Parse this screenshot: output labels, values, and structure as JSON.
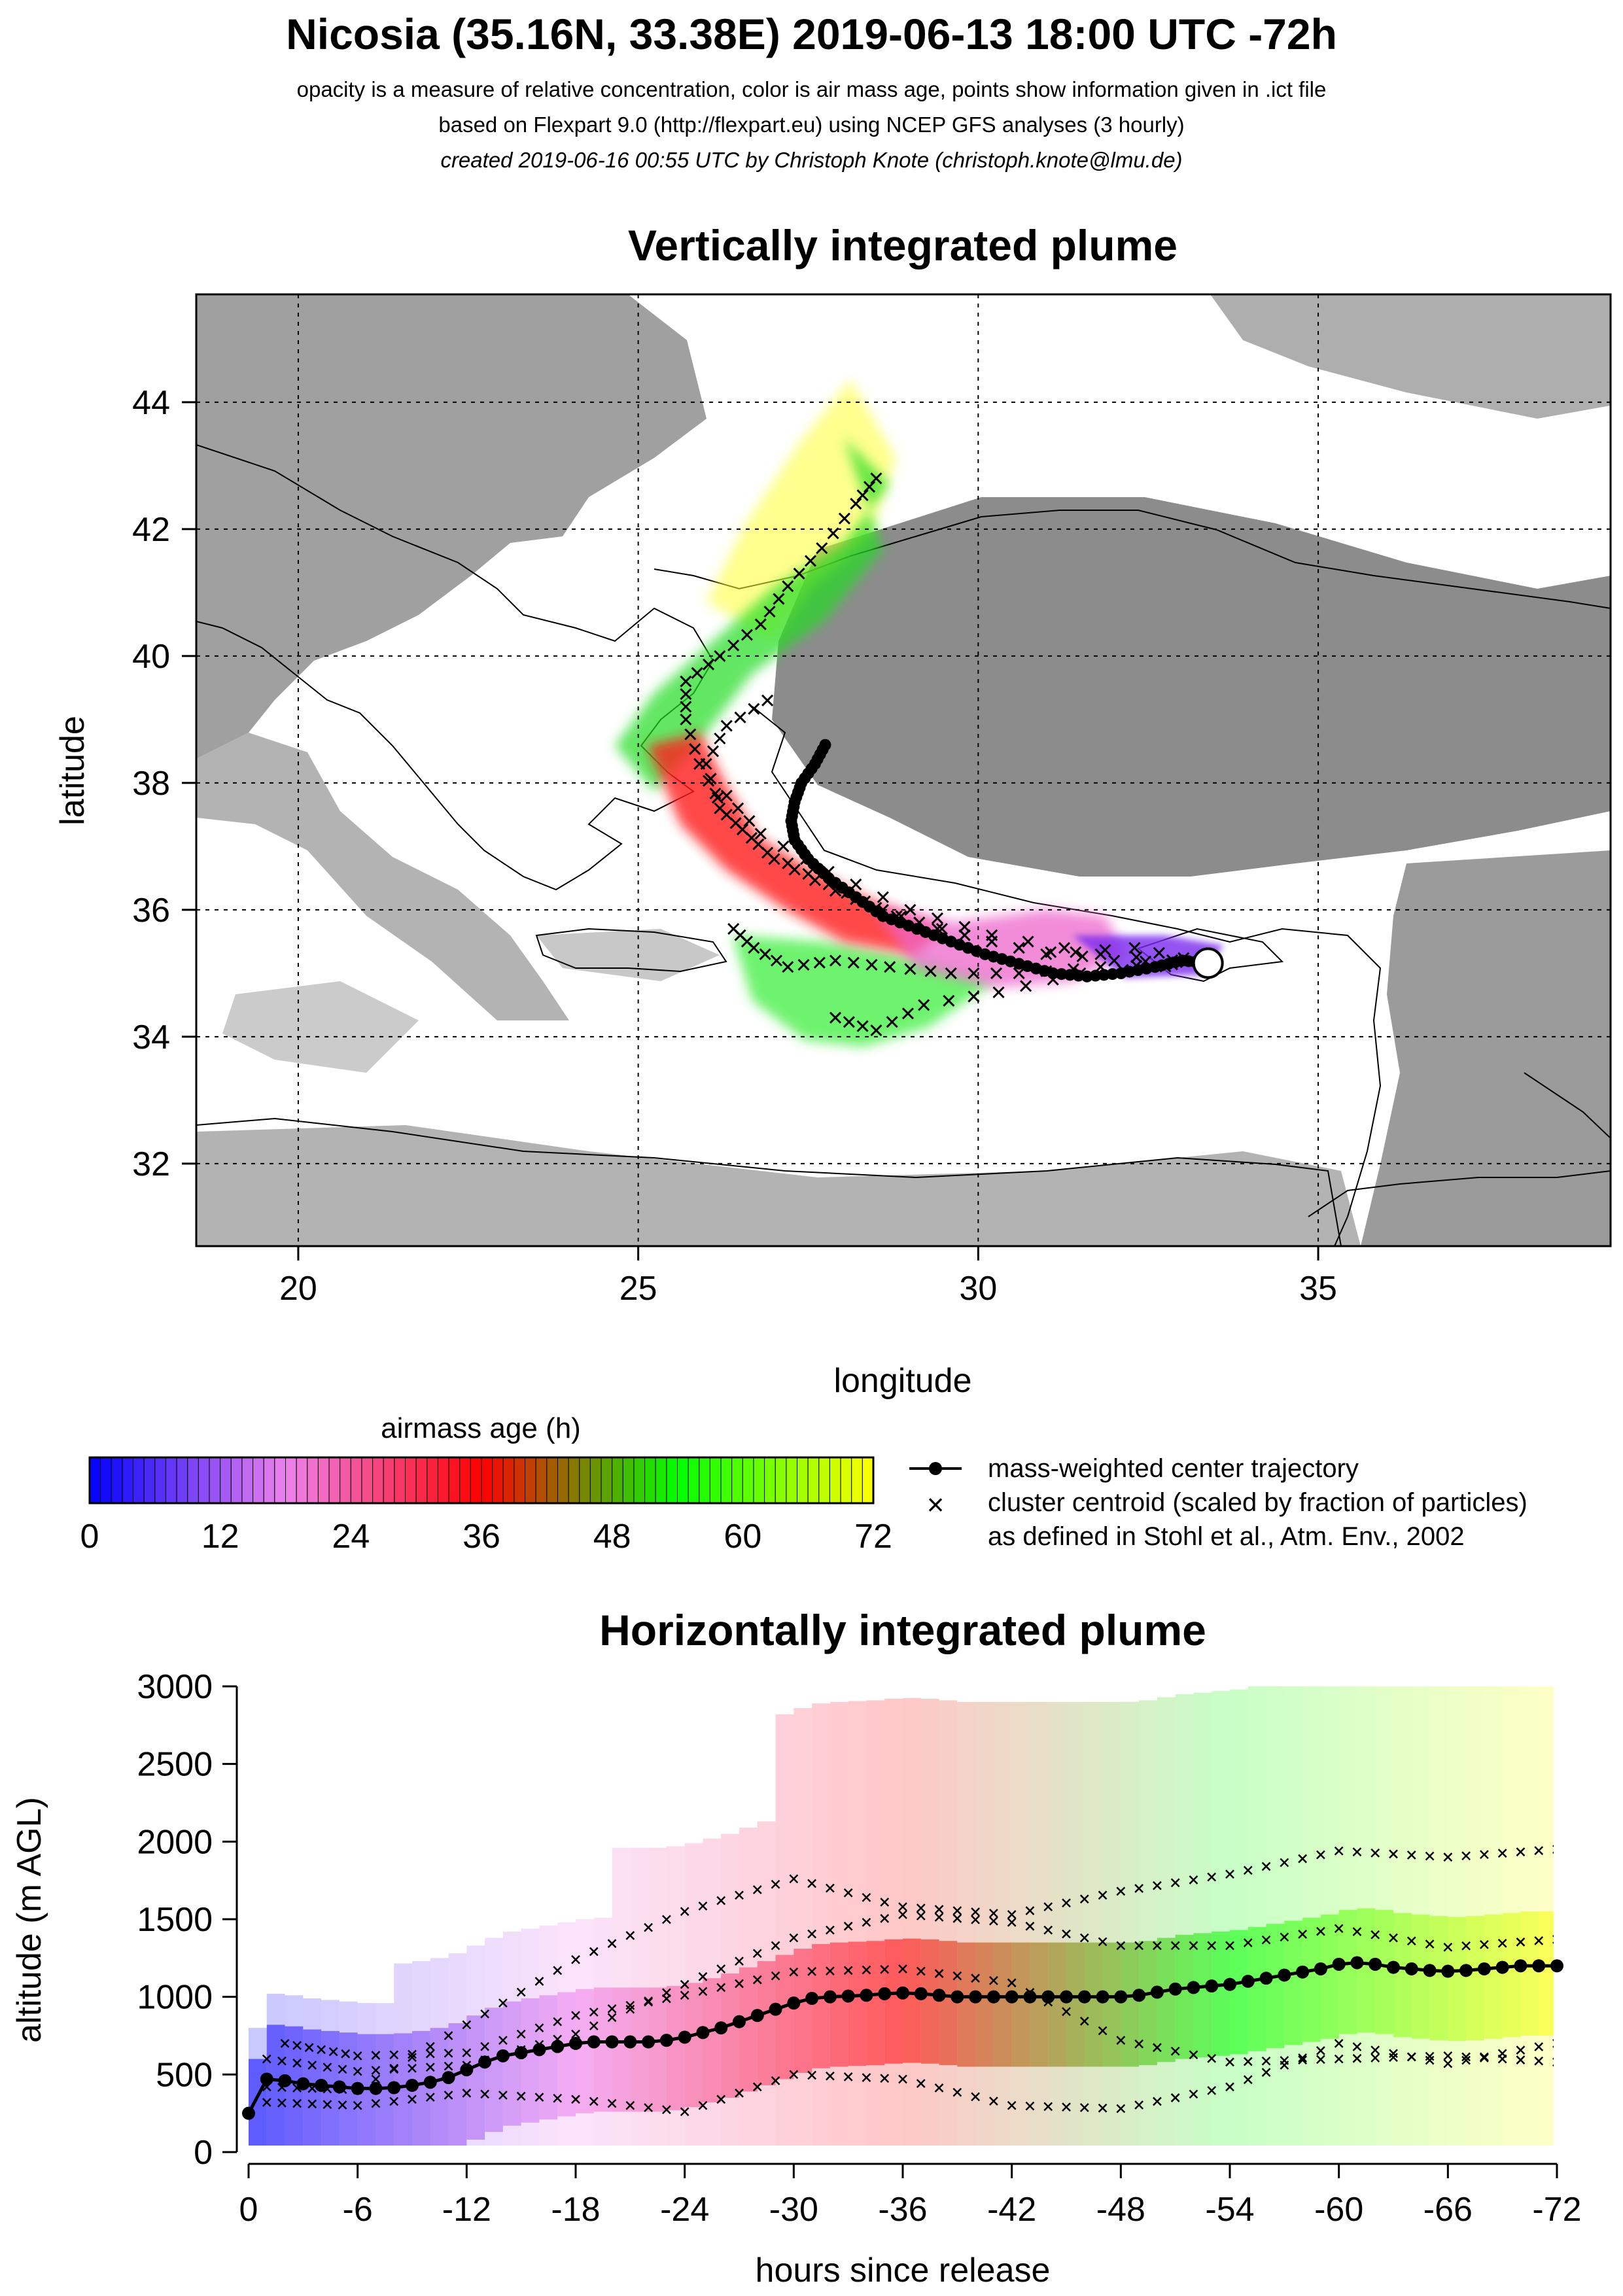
{
  "header": {
    "title": "Nicosia (35.16N, 33.38E) 2019-06-13 18:00 UTC -72h",
    "line1": "opacity is a measure of relative concentration, color is air mass age, points show information given in .ict file",
    "line2": "based on Flexpart 9.0 (http://flexpart.eu) using NCEP GFS analyses (3 hourly)",
    "line3": "created 2019-06-16 00:55 UTC by Christoph Knote (christoph.knote@lmu.de)"
  },
  "chart_data": [
    {
      "type": "map",
      "title": "Vertically integrated plume",
      "xlabel": "longitude",
      "ylabel": "latitude",
      "xlim": [
        18.5,
        39.3
      ],
      "ylim": [
        30.7,
        45.7
      ],
      "xticks": [
        20,
        25,
        30,
        35
      ],
      "yticks": [
        32,
        34,
        36,
        38,
        40,
        42,
        44
      ],
      "grid": true,
      "release_site": {
        "lon": 33.38,
        "lat": 35.16
      },
      "center_trajectory": [
        [
          33.38,
          35.16
        ],
        [
          33.0,
          35.2
        ],
        [
          32.6,
          35.1
        ],
        [
          32.1,
          35.0
        ],
        [
          31.6,
          34.95
        ],
        [
          31.1,
          35.0
        ],
        [
          30.6,
          35.15
        ],
        [
          30.1,
          35.3
        ],
        [
          29.6,
          35.5
        ],
        [
          29.1,
          35.7
        ],
        [
          28.6,
          35.9
        ],
        [
          28.2,
          36.2
        ],
        [
          27.8,
          36.5
        ],
        [
          27.5,
          36.8
        ],
        [
          27.3,
          37.1
        ],
        [
          27.25,
          37.4
        ],
        [
          27.3,
          37.7
        ],
        [
          27.4,
          38.0
        ],
        [
          27.6,
          38.3
        ],
        [
          27.75,
          38.6
        ]
      ],
      "cluster_centroids": [
        [
          [
            33.38,
            35.16
          ],
          [
            32.3,
            35.4
          ],
          [
            31.0,
            35.3
          ],
          [
            29.8,
            35.6
          ],
          [
            28.8,
            35.9
          ],
          [
            27.9,
            36.3
          ],
          [
            27.0,
            36.8
          ],
          [
            26.3,
            37.5
          ],
          [
            25.9,
            38.3
          ],
          [
            25.7,
            39.0
          ],
          [
            25.7,
            39.6
          ],
          [
            26.2,
            40.0
          ],
          [
            26.8,
            40.5
          ],
          [
            27.2,
            41.1
          ],
          [
            27.7,
            41.7
          ],
          [
            28.2,
            42.4
          ],
          [
            28.5,
            42.8
          ]
        ],
        [
          [
            33.38,
            35.16
          ],
          [
            32.0,
            35.2
          ],
          [
            30.6,
            35.4
          ],
          [
            29.4,
            35.7
          ],
          [
            28.6,
            36.0
          ],
          [
            27.8,
            36.4
          ],
          [
            26.9,
            36.9
          ],
          [
            26.2,
            37.6
          ],
          [
            26.0,
            38.3
          ],
          [
            26.3,
            38.9
          ],
          [
            26.9,
            39.3
          ]
        ],
        [
          [
            33.38,
            35.16
          ],
          [
            31.8,
            35.1
          ],
          [
            30.6,
            35.0
          ],
          [
            29.6,
            35.0
          ],
          [
            28.7,
            35.1
          ],
          [
            27.9,
            35.2
          ],
          [
            27.2,
            35.1
          ],
          [
            26.7,
            35.4
          ],
          [
            26.4,
            35.7
          ]
        ],
        [
          [
            33.38,
            35.16
          ],
          [
            31.5,
            35.0
          ],
          [
            30.3,
            34.7
          ],
          [
            29.2,
            34.5
          ],
          [
            28.5,
            34.1
          ],
          [
            27.9,
            34.3
          ]
        ],
        [
          [
            33.38,
            35.16
          ],
          [
            31.8,
            35.3
          ],
          [
            30.2,
            35.6
          ],
          [
            29.0,
            36.0
          ],
          [
            27.8,
            36.6
          ],
          [
            26.8,
            37.2
          ],
          [
            26.3,
            37.8
          ]
        ]
      ],
      "colorbar": {
        "title": "airmass age (h)",
        "ticks": [
          0,
          12,
          24,
          36,
          48,
          60,
          72
        ],
        "colors": [
          "#0000ff",
          "#ee82ee",
          "#ff0000",
          "#00ff00",
          "#ffff00"
        ]
      },
      "legend": {
        "position": "bottom-right",
        "center_label": "mass-weighted center trajectory",
        "cluster_label": "cluster centroid (scaled by fraction of particles)",
        "cluster_note": "as defined in Stohl et al., Atm. Env., 2002"
      }
    },
    {
      "type": "line",
      "title": "Horizontally integrated plume",
      "xlabel": "hours since release",
      "ylabel": "altitude (m AGL)",
      "xlim": [
        0,
        -72
      ],
      "ylim": [
        0,
        3000
      ],
      "xtick_labels": [
        "0",
        "-6",
        "-12",
        "-18",
        "-24",
        "-30",
        "-36",
        "-42",
        "-48",
        "-54",
        "-60",
        "-66",
        "-72"
      ],
      "ytick_labels": [
        "0",
        "500",
        "1000",
        "1500",
        "2000",
        "2500",
        "3000"
      ],
      "series": [
        {
          "x": [
            0,
            -1,
            -2,
            -3,
            -4,
            -5,
            -6,
            -7,
            -8,
            -9,
            -10,
            -11,
            -12,
            -13,
            -14,
            -15,
            -16,
            -17,
            -18,
            -19,
            -20,
            -21,
            -22,
            -23,
            -24,
            -25,
            -26,
            -27,
            -28,
            -29,
            -30,
            -31,
            -32,
            -33,
            -34,
            -35,
            -36,
            -37,
            -38,
            -39,
            -40,
            -41,
            -42,
            -43,
            -44,
            -45,
            -46,
            -47,
            -48,
            -49,
            -50,
            -51,
            -52,
            -53,
            -54,
            -55,
            -56,
            -57,
            -58,
            -59,
            -60,
            -61,
            -62,
            -63,
            -64,
            -65,
            -66,
            -67,
            -68,
            -69,
            -70,
            -71,
            -72
          ],
          "y": [
            250,
            470,
            460,
            440,
            430,
            420,
            410,
            410,
            415,
            430,
            450,
            480,
            530,
            580,
            620,
            640,
            660,
            680,
            700,
            710,
            710,
            710,
            710,
            720,
            740,
            770,
            800,
            840,
            880,
            920,
            960,
            990,
            1000,
            1005,
            1010,
            1020,
            1025,
            1020,
            1010,
            1000,
            1000,
            1000,
            1000,
            1000,
            1000,
            1000,
            1000,
            1000,
            1000,
            1010,
            1030,
            1050,
            1060,
            1070,
            1080,
            1100,
            1120,
            1140,
            1160,
            1180,
            1210,
            1220,
            1210,
            1190,
            1180,
            1170,
            1165,
            1170,
            1180,
            1190,
            1200,
            1200,
            1200
          ]
        }
      ],
      "cluster_profiles": [
        {
          "x": [
            -1,
            -6,
            -12,
            -18,
            -24,
            -30,
            -36,
            -42,
            -48,
            -54,
            -60,
            -66,
            -72
          ],
          "y": [
            600,
            520,
            560,
            760,
            1080,
            1380,
            1530,
            1480,
            1330,
            1330,
            1440,
            1320,
            1370
          ]
        },
        {
          "x": [
            -1,
            -6,
            -12,
            -18,
            -24,
            -30,
            -36,
            -42,
            -48,
            -54,
            -60,
            -66,
            -72
          ],
          "y": [
            320,
            300,
            380,
            340,
            260,
            500,
            470,
            300,
            280,
            420,
            700,
            570,
            700
          ]
        },
        {
          "x": [
            -1,
            -6,
            -12,
            -18,
            -24,
            -30,
            -36,
            -42,
            -48,
            -54,
            -60,
            -66,
            -72
          ],
          "y": [
            420,
            400,
            820,
            1240,
            1550,
            1760,
            1580,
            1530,
            1680,
            1790,
            1940,
            1900,
            1950
          ]
        },
        {
          "x": [
            -2,
            -6,
            -12,
            -18,
            -24,
            -30,
            -36,
            -42,
            -48,
            -54,
            -60,
            -66,
            -72
          ],
          "y": [
            700,
            620,
            640,
            880,
            1010,
            1160,
            1180,
            1090,
            720,
            580,
            600,
            620,
            580
          ]
        }
      ]
    }
  ]
}
